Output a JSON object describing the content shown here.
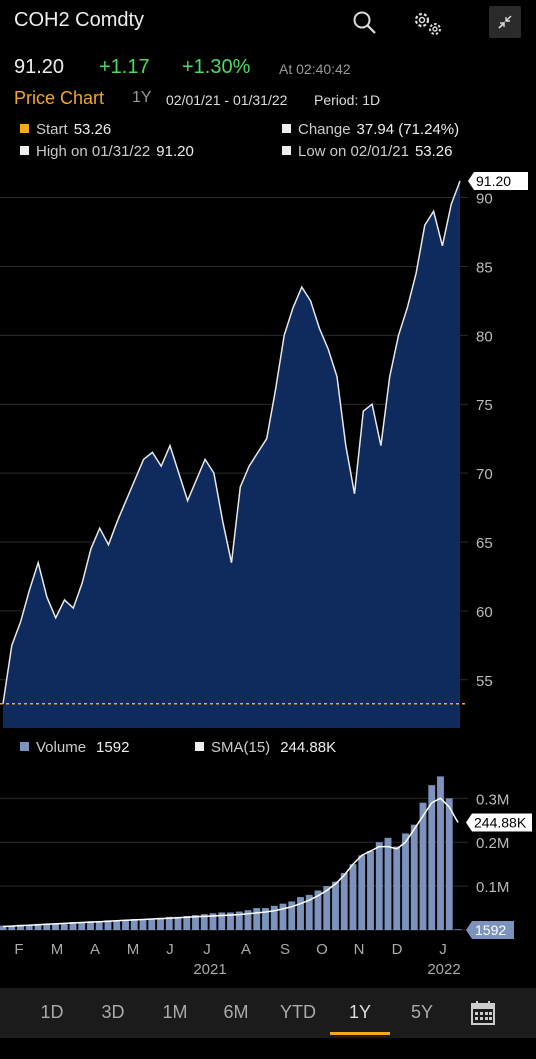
{
  "header": {
    "title": "COH2 Comdty",
    "search_icon": "search-icon",
    "settings_icon": "gears-icon",
    "collapse_icon": "collapse-icon"
  },
  "quote": {
    "last": "91.20",
    "change": "+1.17",
    "change_pct": "+1.30%",
    "time": "At 02:40:42"
  },
  "price_chart": {
    "title": "Price Chart",
    "range": "1Y",
    "dates": "02/01/21 - 01/31/22",
    "period": "Period: 1D"
  },
  "stats": {
    "start_label": "Start",
    "start_value": "53.26",
    "change_label": "Change",
    "change_value": "37.94 (71.24%)",
    "high_label": "High on 01/31/22",
    "high_value": "91.20",
    "low_label": "Low on 02/01/21",
    "low_value": "53.26"
  },
  "volume_legend": {
    "volume_label": "Volume",
    "volume_value": "1592",
    "sma_label": "SMA(15)",
    "sma_value": "244.88K"
  },
  "colors": {
    "accent": "#f5a623",
    "up": "#4cd964",
    "area": "#0f2a5c",
    "volume": "#7b93bd"
  },
  "chart_data": [
    {
      "type": "area",
      "x": [
        "2021-02-01",
        "2021-02-08",
        "2021-02-15",
        "2021-02-22",
        "2021-03-01",
        "2021-03-08",
        "2021-03-15",
        "2021-03-22",
        "2021-03-29",
        "2021-04-05",
        "2021-04-12",
        "2021-04-19",
        "2021-04-26",
        "2021-05-03",
        "2021-05-10",
        "2021-05-17",
        "2021-05-24",
        "2021-05-31",
        "2021-06-07",
        "2021-06-14",
        "2021-06-21",
        "2021-06-28",
        "2021-07-05",
        "2021-07-12",
        "2021-07-19",
        "2021-07-26",
        "2021-08-02",
        "2021-08-09",
        "2021-08-16",
        "2021-08-23",
        "2021-08-30",
        "2021-09-06",
        "2021-09-13",
        "2021-09-20",
        "2021-09-27",
        "2021-10-04",
        "2021-10-11",
        "2021-10-18",
        "2021-10-25",
        "2021-11-01",
        "2021-11-08",
        "2021-11-15",
        "2021-11-22",
        "2021-11-29",
        "2021-12-06",
        "2021-12-13",
        "2021-12-20",
        "2021-12-27",
        "2022-01-03",
        "2022-01-10",
        "2022-01-17",
        "2022-01-24",
        "2022-01-31"
      ],
      "series": [
        {
          "values": [
            53.26,
            57.5,
            59.2,
            61.5,
            63.5,
            61.0,
            59.5,
            60.8,
            60.2,
            62.0,
            64.5,
            66.0,
            64.8,
            66.5,
            68.0,
            69.5,
            71.0,
            71.5,
            70.5,
            72.0,
            70.0,
            68.0,
            69.5,
            71.0,
            70.0,
            66.5,
            63.5,
            69.0,
            70.5,
            71.5,
            72.5,
            76.0,
            80.0,
            82.0,
            83.5,
            82.5,
            80.5,
            79.0,
            77.0,
            72.0,
            68.5,
            74.5,
            75.0,
            72.0,
            77.0,
            80.0,
            82.0,
            84.5,
            88.0,
            89.0,
            86.5,
            89.5,
            91.2
          ]
        }
      ],
      "ylim": [
        51.5,
        92
      ],
      "yticks": [
        "55",
        "60",
        "65",
        "70",
        "75",
        "80",
        "85",
        "90"
      ],
      "last_label": "91.20",
      "start_line": 53.26
    },
    {
      "type": "bar",
      "xticks": [
        "F",
        "M",
        "A",
        "M",
        "J",
        "J",
        "A",
        "S",
        "O",
        "N",
        "D",
        "J"
      ],
      "years": [
        "2021",
        "2022"
      ],
      "ylim": [
        0,
        0.36
      ],
      "yticks": [
        "0.1M",
        "0.2M",
        "0.3M"
      ],
      "series": [
        {
          "name": "Volume",
          "values": [
            0.01,
            0.01,
            0.012,
            0.012,
            0.014,
            0.015,
            0.015,
            0.016,
            0.018,
            0.018,
            0.02,
            0.02,
            0.022,
            0.02,
            0.022,
            0.025,
            0.024,
            0.026,
            0.028,
            0.03,
            0.03,
            0.032,
            0.034,
            0.036,
            0.038,
            0.04,
            0.04,
            0.042,
            0.045,
            0.05,
            0.05,
            0.055,
            0.06,
            0.065,
            0.075,
            0.08,
            0.09,
            0.1,
            0.11,
            0.13,
            0.15,
            0.17,
            0.18,
            0.2,
            0.21,
            0.19,
            0.22,
            0.24,
            0.29,
            0.33,
            0.35,
            0.3,
            0.001592
          ]
        },
        {
          "name": "SMA(15)",
          "values": [
            0.008,
            0.009,
            0.01,
            0.011,
            0.012,
            0.013,
            0.014,
            0.015,
            0.016,
            0.017,
            0.018,
            0.019,
            0.02,
            0.021,
            0.022,
            0.023,
            0.024,
            0.025,
            0.026,
            0.027,
            0.028,
            0.029,
            0.03,
            0.031,
            0.032,
            0.033,
            0.034,
            0.035,
            0.037,
            0.039,
            0.041,
            0.044,
            0.048,
            0.053,
            0.06,
            0.068,
            0.078,
            0.09,
            0.105,
            0.125,
            0.15,
            0.17,
            0.18,
            0.19,
            0.19,
            0.185,
            0.2,
            0.23,
            0.26,
            0.29,
            0.3,
            0.28,
            0.24488
          ]
        }
      ],
      "last_sma_label": "244.88K",
      "last_volume_label": "1592"
    }
  ],
  "tabs": [
    {
      "label": "1D"
    },
    {
      "label": "3D"
    },
    {
      "label": "1M"
    },
    {
      "label": "6M"
    },
    {
      "label": "YTD"
    },
    {
      "label": "1Y"
    },
    {
      "label": "5Y"
    }
  ],
  "active_tab": "1Y",
  "calendar_icon": "calendar-icon"
}
